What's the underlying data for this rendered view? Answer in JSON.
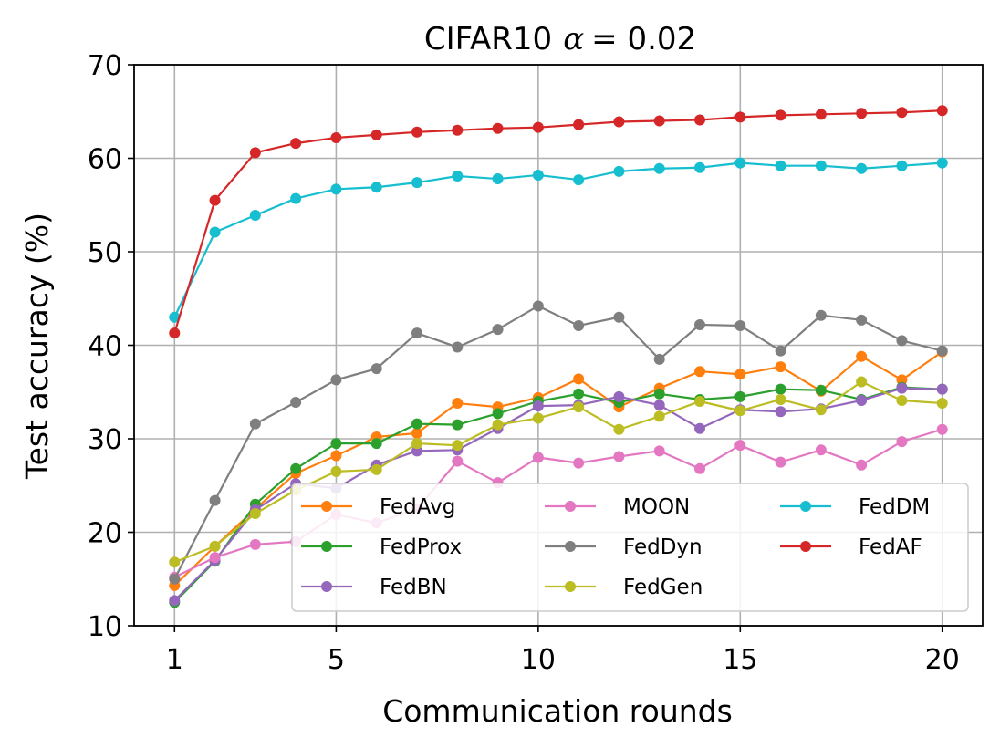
{
  "chart_data": {
    "type": "line",
    "title": "CIFAR10 α = 0.02",
    "title_main": "CIFAR10",
    "title_symbol": "α",
    "title_eq": "= 0.02",
    "xlabel": "Communication rounds",
    "ylabel": "Test accuracy (%)",
    "xlim": [
      0,
      21
    ],
    "ylim": [
      10,
      70
    ],
    "xticks": [
      1,
      5,
      10,
      15,
      20
    ],
    "xtick_labels": [
      "1",
      "5",
      "10",
      "15",
      "20"
    ],
    "yticks": [
      10,
      20,
      30,
      40,
      50,
      60,
      70
    ],
    "ytick_labels": [
      "10",
      "20",
      "30",
      "40",
      "50",
      "60",
      "70"
    ],
    "grid": true,
    "legend_position": "lower-right",
    "x": [
      1,
      2,
      3,
      4,
      5,
      6,
      7,
      8,
      9,
      10,
      11,
      12,
      13,
      14,
      15,
      16,
      17,
      18,
      19,
      20
    ],
    "series": [
      {
        "name": "FedAvg",
        "color": "#ff7f0e",
        "values": [
          14.3,
          18.5,
          22.5,
          26.3,
          28.2,
          30.2,
          30.6,
          33.8,
          33.4,
          34.4,
          36.4,
          33.4,
          35.4,
          37.2,
          36.9,
          37.7,
          35.1,
          38.8,
          36.3,
          39.3
        ]
      },
      {
        "name": "FedProx",
        "color": "#2ca02c",
        "values": [
          12.5,
          16.9,
          23.0,
          26.8,
          29.5,
          29.5,
          31.6,
          31.5,
          32.7,
          34.0,
          34.8,
          33.9,
          34.8,
          34.2,
          34.5,
          35.3,
          35.2,
          34.2,
          35.5,
          35.3
        ]
      },
      {
        "name": "FedBN",
        "color": "#9467bd",
        "values": [
          12.7,
          17.0,
          22.4,
          25.2,
          24.7,
          27.2,
          28.7,
          28.8,
          31.1,
          33.5,
          33.6,
          34.5,
          33.6,
          31.1,
          33.1,
          32.9,
          33.2,
          34.1,
          35.4,
          35.3
        ]
      },
      {
        "name": "MOON",
        "color": "#e377c2",
        "values": [
          15.2,
          17.3,
          18.7,
          19.0,
          21.9,
          21.0,
          22.5,
          27.6,
          25.3,
          28.0,
          27.4,
          28.1,
          28.7,
          26.8,
          29.3,
          27.5,
          28.8,
          27.2,
          29.7,
          31.0
        ]
      },
      {
        "name": "FedDyn",
        "color": "#7f7f7f",
        "values": [
          15.0,
          23.4,
          31.6,
          33.9,
          36.3,
          37.5,
          41.3,
          39.8,
          41.7,
          44.2,
          42.1,
          43.0,
          38.5,
          42.2,
          42.1,
          39.4,
          43.2,
          42.7,
          40.5,
          39.4
        ]
      },
      {
        "name": "FedGen",
        "color": "#bcbd22",
        "values": [
          16.8,
          18.5,
          22.0,
          24.5,
          26.5,
          26.7,
          29.5,
          29.3,
          31.5,
          32.2,
          33.4,
          31.0,
          32.4,
          34.0,
          33.0,
          34.2,
          33.1,
          36.1,
          34.1,
          33.8
        ]
      },
      {
        "name": "FedDM",
        "color": "#17becf",
        "values": [
          43.0,
          52.1,
          53.9,
          55.7,
          56.7,
          56.9,
          57.4,
          58.1,
          57.8,
          58.2,
          57.7,
          58.6,
          58.9,
          59.0,
          59.5,
          59.2,
          59.2,
          58.9,
          59.2,
          59.5
        ]
      },
      {
        "name": "FedAF",
        "color": "#d62728",
        "values": [
          41.3,
          55.5,
          60.6,
          61.6,
          62.2,
          62.5,
          62.8,
          63.0,
          63.2,
          63.3,
          63.6,
          63.9,
          64.0,
          64.1,
          64.4,
          64.6,
          64.7,
          64.8,
          64.9,
          65.1
        ]
      }
    ]
  }
}
